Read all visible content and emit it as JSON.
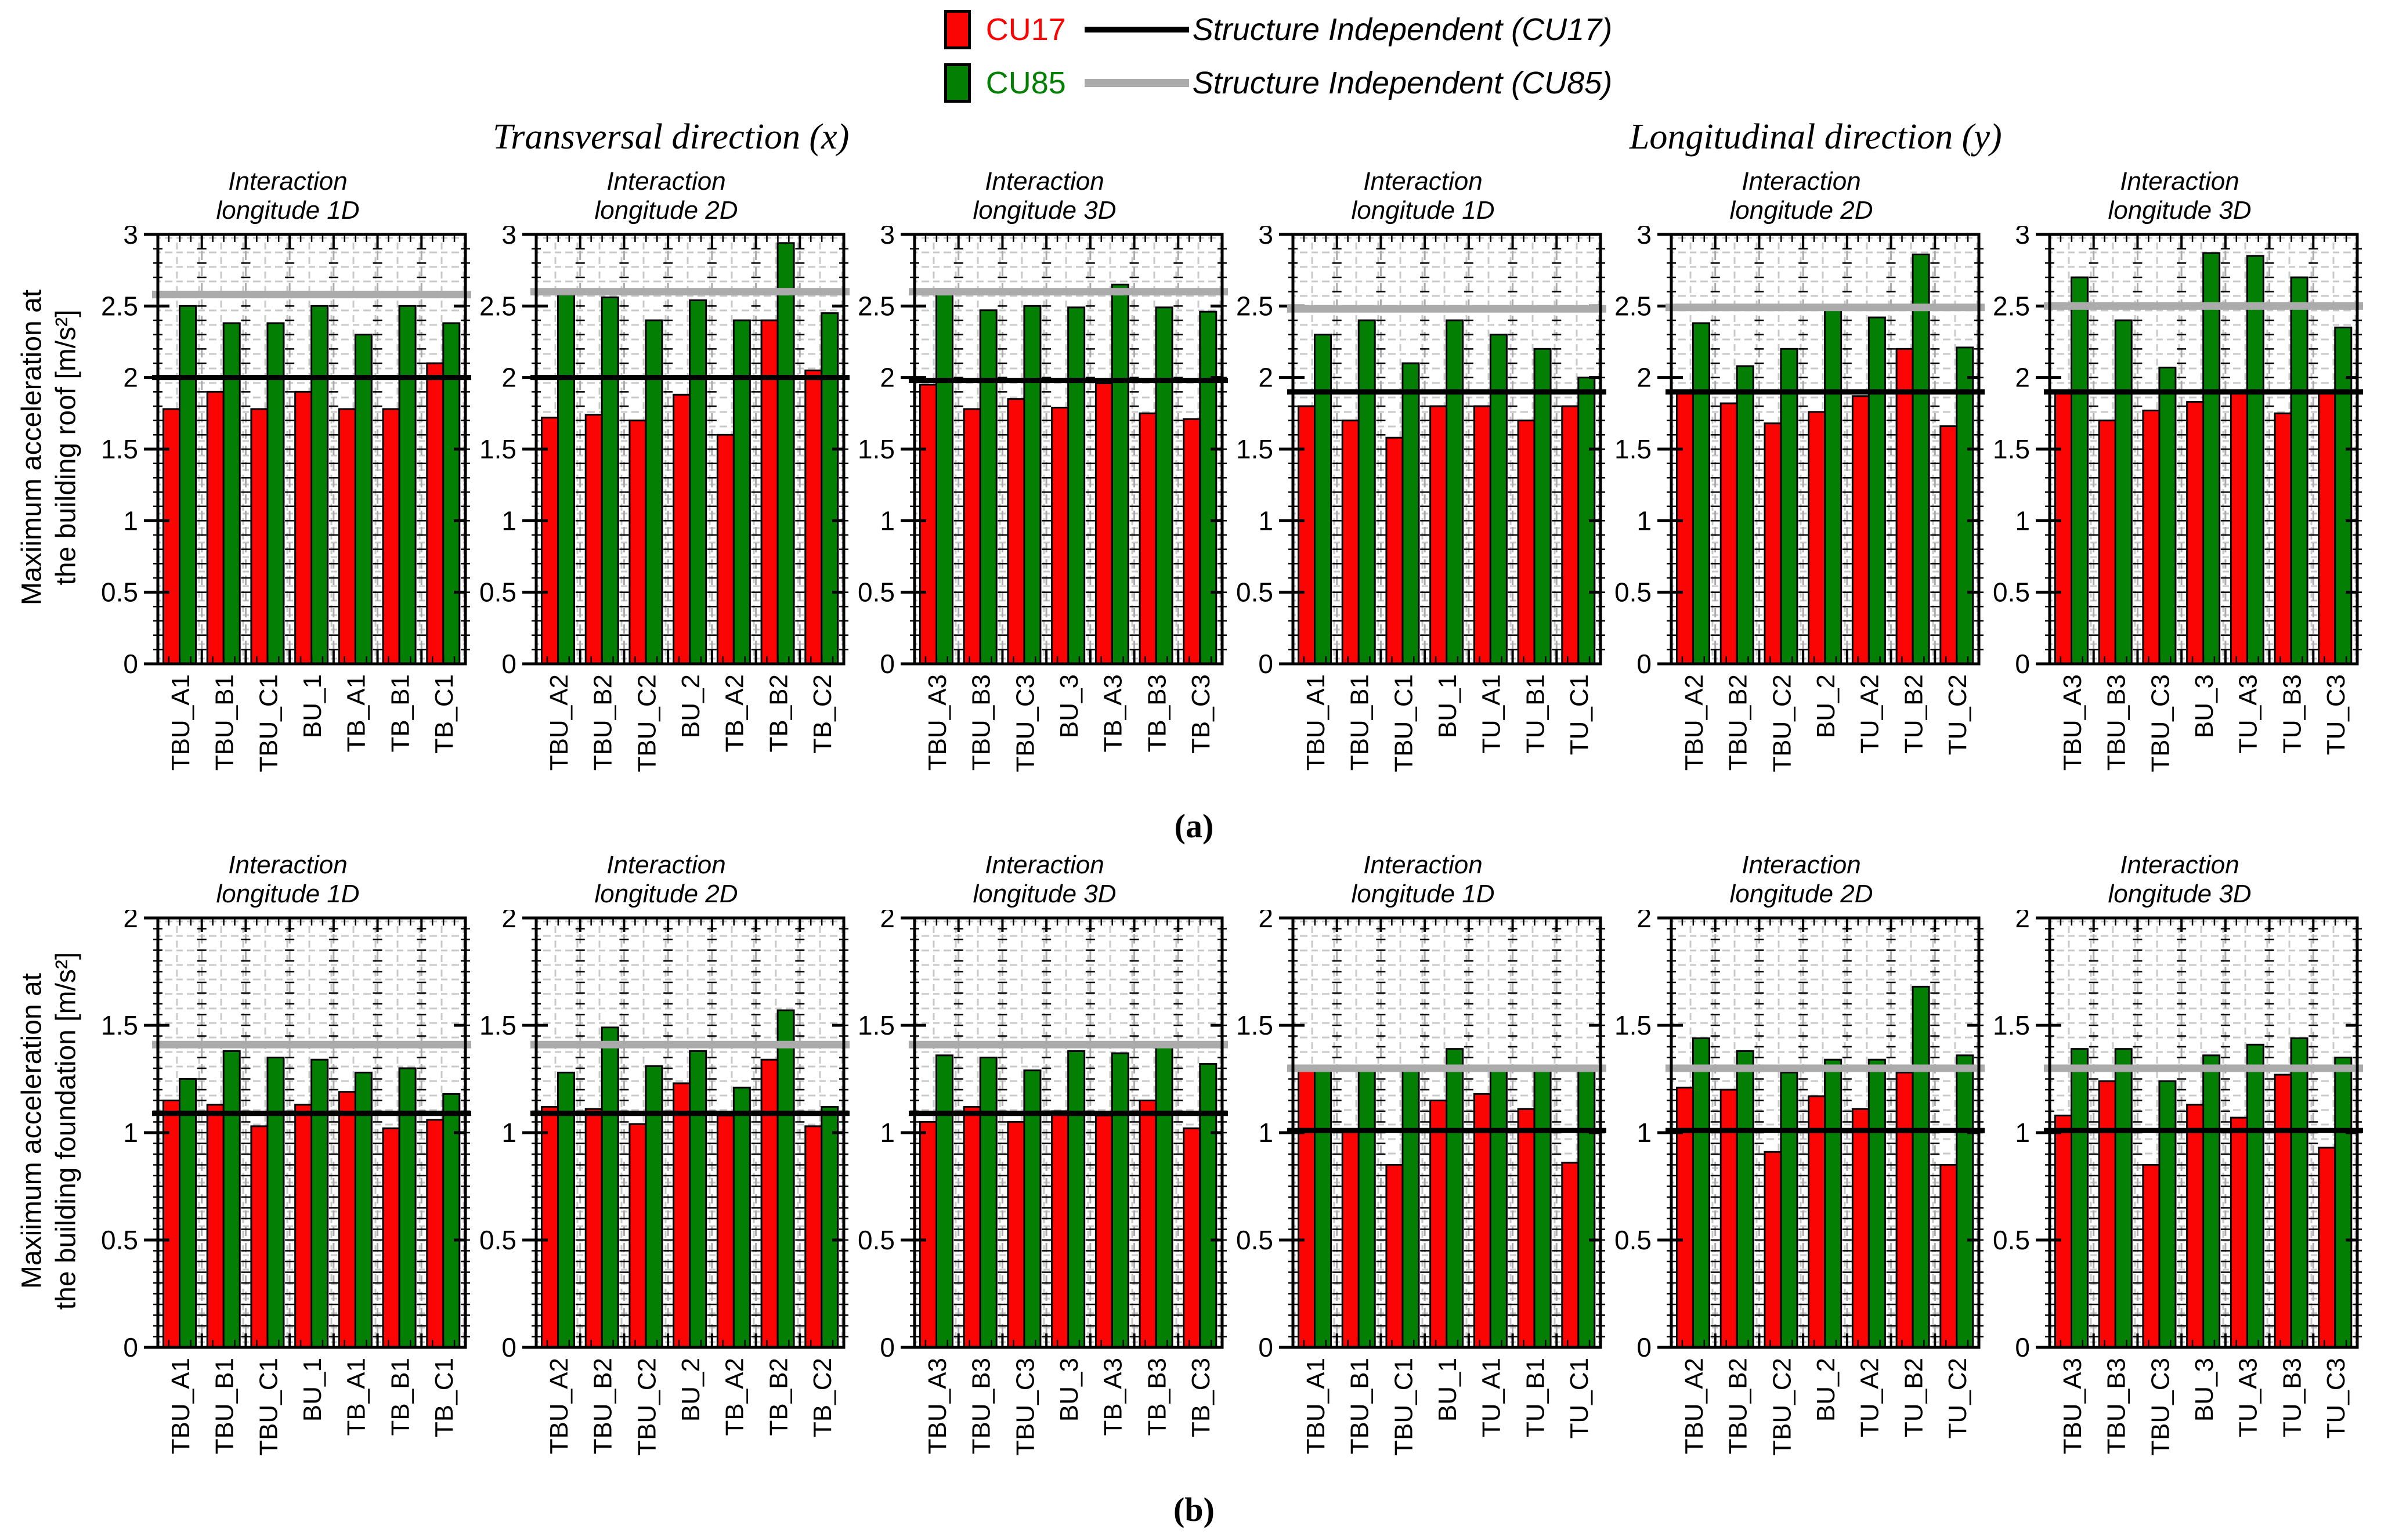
{
  "figure": {
    "panel_a_label": "(a)",
    "panel_b_label": "(b)",
    "direction_titles": [
      "Transversal direction (x)",
      "Longitudinal direction (y)"
    ],
    "row_ylabels": [
      {
        "line1": "Maxiimum acceleration at",
        "line2": "the building roof [m/s²]"
      },
      {
        "line1": "Maxiimum acceleration at",
        "line2": "the building foundation [m/s²]"
      }
    ]
  },
  "legend": {
    "bars": [
      {
        "label": "CU17",
        "color": "#fa0404"
      },
      {
        "label": "CU85",
        "color": "#038003"
      }
    ],
    "lines": [
      {
        "label": "Structure Independent (CU17)",
        "color": "#000000"
      },
      {
        "label": "Structure Independent (CU85)",
        "color": "#ababab"
      }
    ]
  },
  "chart_data": [
    {
      "type": "bar",
      "row": 0,
      "col": 0,
      "title": [
        "Interaction",
        "longitude 1D"
      ],
      "categories": [
        "TBU_A1",
        "TBU_B1",
        "TBU_C1",
        "BU_1",
        "TB_A1",
        "TB_B1",
        "TB_C1"
      ],
      "series": [
        {
          "name": "CU17",
          "values": [
            1.78,
            1.9,
            1.78,
            1.9,
            1.78,
            1.78,
            2.1
          ]
        },
        {
          "name": "CU85",
          "values": [
            2.5,
            2.38,
            2.38,
            2.5,
            2.3,
            2.5,
            2.38
          ]
        }
      ],
      "ref_lines": {
        "cu17": 2.0,
        "cu85": 2.58
      },
      "ylim": [
        0,
        3
      ],
      "yticks": [
        0,
        0.5,
        1,
        1.5,
        2,
        2.5,
        3
      ],
      "minor_step": 0.1
    },
    {
      "type": "bar",
      "row": 0,
      "col": 1,
      "title": [
        "Interaction",
        "longitude 2D"
      ],
      "categories": [
        "TBU_A2",
        "TBU_B2",
        "TBU_C2",
        "BU_2",
        "TB_A2",
        "TB_B2",
        "TB_C2"
      ],
      "series": [
        {
          "name": "CU17",
          "values": [
            1.72,
            1.74,
            1.7,
            1.88,
            1.6,
            2.4,
            2.05
          ]
        },
        {
          "name": "CU85",
          "values": [
            2.58,
            2.56,
            2.4,
            2.54,
            2.4,
            2.94,
            2.45
          ]
        }
      ],
      "ref_lines": {
        "cu17": 2.0,
        "cu85": 2.6
      },
      "ylim": [
        0,
        3
      ],
      "yticks": [
        0,
        0.5,
        1,
        1.5,
        2,
        2.5,
        3
      ],
      "minor_step": 0.1
    },
    {
      "type": "bar",
      "row": 0,
      "col": 2,
      "title": [
        "Interaction",
        "longitude 3D"
      ],
      "categories": [
        "TBU_A3",
        "TBU_B3",
        "TBU_C3",
        "BU_3",
        "TB_A3",
        "TB_B3",
        "TB_C3"
      ],
      "series": [
        {
          "name": "CU17",
          "values": [
            1.95,
            1.78,
            1.85,
            1.79,
            1.96,
            1.75,
            1.71
          ]
        },
        {
          "name": "CU85",
          "values": [
            2.62,
            2.47,
            2.5,
            2.49,
            2.65,
            2.49,
            2.46
          ]
        }
      ],
      "ref_lines": {
        "cu17": 1.98,
        "cu85": 2.6
      },
      "ylim": [
        0,
        3
      ],
      "yticks": [
        0,
        0.5,
        1,
        1.5,
        2,
        2.5,
        3
      ],
      "minor_step": 0.1
    },
    {
      "type": "bar",
      "row": 0,
      "col": 3,
      "title": [
        "Interaction",
        "longitude 1D"
      ],
      "categories": [
        "TBU_A1",
        "TBU_B1",
        "TBU_C1",
        "BU_1",
        "TU_A1",
        "TU_B1",
        "TU_C1"
      ],
      "series": [
        {
          "name": "CU17",
          "values": [
            1.8,
            1.7,
            1.58,
            1.8,
            1.8,
            1.7,
            1.8
          ]
        },
        {
          "name": "CU85",
          "values": [
            2.3,
            2.4,
            2.1,
            2.4,
            2.3,
            2.2,
            2.0
          ]
        }
      ],
      "ref_lines": {
        "cu17": 1.9,
        "cu85": 2.48
      },
      "ylim": [
        0,
        3
      ],
      "yticks": [
        0,
        0.5,
        1,
        1.5,
        2,
        2.5,
        3
      ],
      "minor_step": 0.1
    },
    {
      "type": "bar",
      "row": 0,
      "col": 4,
      "title": [
        "Interaction",
        "longitude 2D"
      ],
      "categories": [
        "TBU_A2",
        "TBU_B2",
        "TBU_C2",
        "BU_2",
        "TU_A2",
        "TU_B2",
        "TU_C2"
      ],
      "series": [
        {
          "name": "CU17",
          "values": [
            1.9,
            1.82,
            1.68,
            1.76,
            1.87,
            2.2,
            1.66
          ]
        },
        {
          "name": "CU85",
          "values": [
            2.38,
            2.08,
            2.2,
            2.47,
            2.42,
            2.86,
            2.21
          ]
        }
      ],
      "ref_lines": {
        "cu17": 1.9,
        "cu85": 2.49
      },
      "ylim": [
        0,
        3
      ],
      "yticks": [
        0,
        0.5,
        1,
        1.5,
        2,
        2.5,
        3
      ],
      "minor_step": 0.1
    },
    {
      "type": "bar",
      "row": 0,
      "col": 5,
      "title": [
        "Interaction",
        "longitude 3D"
      ],
      "categories": [
        "TBU_A3",
        "TBU_B3",
        "TBU_C3",
        "BU_3",
        "TU_A3",
        "TU_B3",
        "TU_C3"
      ],
      "series": [
        {
          "name": "CU17",
          "values": [
            1.9,
            1.7,
            1.77,
            1.83,
            1.9,
            1.75,
            1.9
          ]
        },
        {
          "name": "CU85",
          "values": [
            2.7,
            2.4,
            2.07,
            2.87,
            2.85,
            2.7,
            2.35
          ]
        }
      ],
      "ref_lines": {
        "cu17": 1.9,
        "cu85": 2.5
      },
      "ylim": [
        0,
        3
      ],
      "yticks": [
        0,
        0.5,
        1,
        1.5,
        2,
        2.5,
        3
      ],
      "minor_step": 0.1
    },
    {
      "type": "bar",
      "row": 1,
      "col": 0,
      "title": [
        "Interaction",
        "longitude 1D"
      ],
      "categories": [
        "TBU_A1",
        "TBU_B1",
        "TBU_C1",
        "BU_1",
        "TB_A1",
        "TB_B1",
        "TB_C1"
      ],
      "series": [
        {
          "name": "CU17",
          "values": [
            1.15,
            1.13,
            1.03,
            1.13,
            1.19,
            1.02,
            1.06
          ]
        },
        {
          "name": "CU85",
          "values": [
            1.25,
            1.38,
            1.35,
            1.34,
            1.28,
            1.3,
            1.18
          ]
        }
      ],
      "ref_lines": {
        "cu17": 1.09,
        "cu85": 1.41
      },
      "ylim": [
        0,
        2
      ],
      "yticks": [
        0,
        0.5,
        1,
        1.5,
        2
      ],
      "minor_step": 0.05
    },
    {
      "type": "bar",
      "row": 1,
      "col": 1,
      "title": [
        "Interaction",
        "longitude 2D"
      ],
      "categories": [
        "TBU_A2",
        "TBU_B2",
        "TBU_C2",
        "BU_2",
        "TB_A2",
        "TB_B2",
        "TB_C2"
      ],
      "series": [
        {
          "name": "CU17",
          "values": [
            1.12,
            1.11,
            1.04,
            1.23,
            1.08,
            1.34,
            1.03
          ]
        },
        {
          "name": "CU85",
          "values": [
            1.28,
            1.49,
            1.31,
            1.38,
            1.21,
            1.57,
            1.12
          ]
        }
      ],
      "ref_lines": {
        "cu17": 1.09,
        "cu85": 1.41
      },
      "ylim": [
        0,
        2
      ],
      "yticks": [
        0,
        0.5,
        1,
        1.5,
        2
      ],
      "minor_step": 0.05
    },
    {
      "type": "bar",
      "row": 1,
      "col": 2,
      "title": [
        "Interaction",
        "longitude 3D"
      ],
      "categories": [
        "TBU_A3",
        "TBU_B3",
        "TBU_C3",
        "BU_3",
        "TB_A3",
        "TB_B3",
        "TB_C3"
      ],
      "series": [
        {
          "name": "CU17",
          "values": [
            1.05,
            1.12,
            1.05,
            1.1,
            1.08,
            1.15,
            1.02
          ]
        },
        {
          "name": "CU85",
          "values": [
            1.36,
            1.35,
            1.29,
            1.38,
            1.37,
            1.42,
            1.32
          ]
        }
      ],
      "ref_lines": {
        "cu17": 1.09,
        "cu85": 1.41
      },
      "ylim": [
        0,
        2
      ],
      "yticks": [
        0,
        0.5,
        1,
        1.5,
        2
      ],
      "minor_step": 0.05
    },
    {
      "type": "bar",
      "row": 1,
      "col": 3,
      "title": [
        "Interaction",
        "longitude 1D"
      ],
      "categories": [
        "TBU_A1",
        "TBU_B1",
        "TBU_C1",
        "BU_1",
        "TU_A1",
        "TU_B1",
        "TU_C1"
      ],
      "series": [
        {
          "name": "CU17",
          "values": [
            1.3,
            1.01,
            0.85,
            1.15,
            1.18,
            1.11,
            0.86
          ]
        },
        {
          "name": "CU85",
          "values": [
            1.3,
            1.3,
            1.3,
            1.39,
            1.29,
            1.29,
            1.29
          ]
        }
      ],
      "ref_lines": {
        "cu17": 1.01,
        "cu85": 1.3
      },
      "ylim": [
        0,
        2
      ],
      "yticks": [
        0,
        0.5,
        1,
        1.5,
        2
      ],
      "minor_step": 0.05
    },
    {
      "type": "bar",
      "row": 1,
      "col": 4,
      "title": [
        "Interaction",
        "longitude 2D"
      ],
      "categories": [
        "TBU_A2",
        "TBU_B2",
        "TBU_C2",
        "BU_2",
        "TU_A2",
        "TU_B2",
        "TU_C2"
      ],
      "series": [
        {
          "name": "CU17",
          "values": [
            1.21,
            1.2,
            0.91,
            1.17,
            1.11,
            1.28,
            0.85
          ]
        },
        {
          "name": "CU85",
          "values": [
            1.44,
            1.38,
            1.28,
            1.34,
            1.34,
            1.68,
            1.36
          ]
        }
      ],
      "ref_lines": {
        "cu17": 1.01,
        "cu85": 1.3
      },
      "ylim": [
        0,
        2
      ],
      "yticks": [
        0,
        0.5,
        1,
        1.5,
        2
      ],
      "minor_step": 0.05
    },
    {
      "type": "bar",
      "row": 1,
      "col": 5,
      "title": [
        "Interaction",
        "longitude 3D"
      ],
      "categories": [
        "TBU_A3",
        "TBU_B3",
        "TBU_C3",
        "BU_3",
        "TU_A3",
        "TU_B3",
        "TU_C3"
      ],
      "series": [
        {
          "name": "CU17",
          "values": [
            1.08,
            1.24,
            0.85,
            1.13,
            1.07,
            1.27,
            0.93
          ]
        },
        {
          "name": "CU85",
          "values": [
            1.39,
            1.39,
            1.24,
            1.36,
            1.41,
            1.44,
            1.35
          ]
        }
      ],
      "ref_lines": {
        "cu17": 1.01,
        "cu85": 1.3
      },
      "ylim": [
        0,
        2
      ],
      "yticks": [
        0,
        0.5,
        1,
        1.5,
        2
      ],
      "minor_step": 0.05
    }
  ]
}
